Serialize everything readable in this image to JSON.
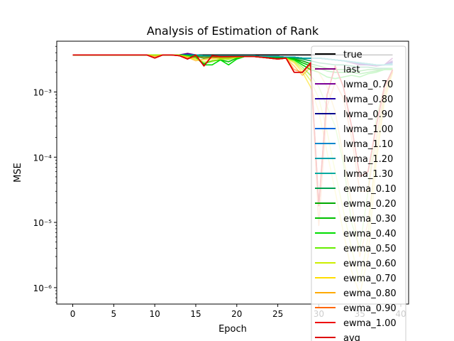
{
  "chart_data": {
    "type": "line",
    "title": "Analysis of Estimation of Rank",
    "xlabel": "Epoch",
    "ylabel": "MSE",
    "yscale": "log",
    "xlim": [
      -1.95,
      40.95
    ],
    "ylim": [
      5.6e-07,
      0.006
    ],
    "xticks": [
      0,
      5,
      10,
      15,
      20,
      25,
      30,
      35,
      40
    ],
    "yticks": [
      {
        "value": 1e-06,
        "label": "10⁻⁶"
      },
      {
        "value": 1e-05,
        "label": "10⁻⁵"
      },
      {
        "value": 0.0001,
        "label": "10⁻⁴"
      },
      {
        "value": 0.001,
        "label": "10⁻³"
      }
    ],
    "grid": false,
    "legend_position": "right, overflowing bottom",
    "x": [
      0,
      1,
      2,
      3,
      4,
      5,
      6,
      7,
      8,
      9,
      10,
      11,
      12,
      13,
      14,
      15,
      16,
      17,
      18,
      19,
      20,
      21,
      22,
      23,
      24,
      25,
      26,
      27,
      28,
      29,
      30,
      31,
      32,
      33,
      34,
      35,
      36,
      37,
      38,
      39
    ],
    "series": [
      {
        "name": "true",
        "color": "#000000",
        "values": [
          0.0037,
          0.0037,
          0.0037,
          0.0037,
          0.0037,
          0.0037,
          0.0037,
          0.0037,
          0.0037,
          0.0037,
          0.0037,
          0.0037,
          0.0037,
          0.0037,
          0.0037,
          0.0037,
          0.0037,
          0.0037,
          0.0037,
          0.0037,
          0.0037,
          0.0037,
          0.0037,
          0.0037,
          0.0037,
          0.0037,
          0.0037,
          0.0037,
          0.0037,
          0.0037,
          0.0037,
          0.0037,
          0.0037,
          0.0037,
          0.0037,
          0.0037,
          0.0037,
          0.0037,
          0.0037,
          0.0037
        ]
      },
      {
        "name": "last",
        "color": "#800080",
        "values": [
          0.0037,
          0.0037,
          0.0037,
          0.0037,
          0.0037,
          0.0037,
          0.0037,
          0.0037,
          0.0037,
          0.0037,
          0.0037,
          0.0037,
          0.0037,
          0.0037,
          0.0039,
          0.0037,
          0.0036,
          0.0036,
          0.0035,
          0.0036,
          0.0036,
          0.0036,
          0.0036,
          0.0035,
          0.0035,
          0.0034,
          0.0034,
          0.0034,
          0.0033,
          0.0033,
          0.0033,
          0.0032,
          0.0031,
          0.003,
          0.0028,
          0.0026,
          0.0026,
          0.0025,
          0.0026,
          0.0033
        ]
      },
      {
        "name": "lwma_0.70",
        "color": "#7b0098",
        "values": [
          0.0037,
          0.0037,
          0.0037,
          0.0037,
          0.0037,
          0.0037,
          0.0037,
          0.0037,
          0.0037,
          0.0037,
          0.0037,
          0.0037,
          0.0037,
          0.0037,
          0.0038,
          0.0037,
          0.0036,
          0.0036,
          0.0036,
          0.0036,
          0.0036,
          0.0036,
          0.0036,
          0.0035,
          0.0035,
          0.0035,
          0.0034,
          0.0034,
          0.0033,
          0.0033,
          0.0033,
          0.0032,
          0.0031,
          0.003,
          0.0029,
          0.0027,
          0.0026,
          0.0026,
          0.0026,
          0.003
        ]
      },
      {
        "name": "lwma_0.80",
        "color": "#1f00aa",
        "values": [
          0.0037,
          0.0037,
          0.0037,
          0.0037,
          0.0037,
          0.0037,
          0.0037,
          0.0037,
          0.0037,
          0.0037,
          0.0037,
          0.0037,
          0.0037,
          0.0037,
          0.0038,
          0.0037,
          0.0036,
          0.0036,
          0.0036,
          0.0036,
          0.0036,
          0.0036,
          0.0036,
          0.0035,
          0.0035,
          0.0035,
          0.0034,
          0.0034,
          0.0033,
          0.0033,
          0.0033,
          0.0032,
          0.0031,
          0.003,
          0.0029,
          0.0027,
          0.0026,
          0.0026,
          0.0026,
          0.0029
        ]
      },
      {
        "name": "lwma_0.90",
        "color": "#00008e",
        "values": [
          0.0037,
          0.0037,
          0.0037,
          0.0037,
          0.0037,
          0.0037,
          0.0037,
          0.0037,
          0.0037,
          0.0037,
          0.0037,
          0.0037,
          0.0037,
          0.0037,
          0.0037,
          0.0037,
          0.0036,
          0.0036,
          0.0036,
          0.0036,
          0.0036,
          0.0036,
          0.0036,
          0.0035,
          0.0035,
          0.0035,
          0.0034,
          0.0034,
          0.0033,
          0.0033,
          0.0033,
          0.0032,
          0.0031,
          0.003,
          0.0029,
          0.0028,
          0.0027,
          0.0026,
          0.0026,
          0.0028
        ]
      },
      {
        "name": "lwma_1.00",
        "color": "#0066dd",
        "values": [
          0.0037,
          0.0037,
          0.0037,
          0.0037,
          0.0037,
          0.0037,
          0.0037,
          0.0037,
          0.0037,
          0.0037,
          0.0037,
          0.0037,
          0.0037,
          0.0037,
          0.0037,
          0.0037,
          0.0036,
          0.0036,
          0.0036,
          0.0036,
          0.0036,
          0.0036,
          0.0036,
          0.0035,
          0.0035,
          0.0035,
          0.0034,
          0.0034,
          0.0033,
          0.0033,
          0.0033,
          0.0032,
          0.0031,
          0.003,
          0.0029,
          0.0028,
          0.0027,
          0.0026,
          0.0026,
          0.0027
        ]
      },
      {
        "name": "lwma_1.10",
        "color": "#0088cc",
        "values": [
          0.0037,
          0.0037,
          0.0037,
          0.0037,
          0.0037,
          0.0037,
          0.0037,
          0.0037,
          0.0037,
          0.0037,
          0.0037,
          0.0037,
          0.0037,
          0.0037,
          0.0037,
          0.0037,
          0.0036,
          0.0036,
          0.0036,
          0.0036,
          0.0036,
          0.0036,
          0.0036,
          0.0035,
          0.0035,
          0.0035,
          0.0034,
          0.0034,
          0.0033,
          0.0033,
          0.0033,
          0.0032,
          0.0031,
          0.003,
          0.0029,
          0.0028,
          0.0027,
          0.0026,
          0.0026,
          0.0027
        ]
      },
      {
        "name": "lwma_1.20",
        "color": "#00a0aa",
        "values": [
          0.0037,
          0.0037,
          0.0037,
          0.0037,
          0.0037,
          0.0037,
          0.0037,
          0.0037,
          0.0037,
          0.0037,
          0.0037,
          0.0037,
          0.0037,
          0.0037,
          0.0037,
          0.0037,
          0.0036,
          0.0036,
          0.0036,
          0.0036,
          0.0036,
          0.0036,
          0.0036,
          0.0035,
          0.0035,
          0.0035,
          0.0034,
          0.0034,
          0.0033,
          0.0033,
          0.0033,
          0.0032,
          0.0031,
          0.003,
          0.0029,
          0.0028,
          0.0027,
          0.0026,
          0.0026,
          0.0026
        ]
      },
      {
        "name": "lwma_1.30",
        "color": "#00aaa0",
        "values": [
          0.0037,
          0.0037,
          0.0037,
          0.0037,
          0.0037,
          0.0037,
          0.0037,
          0.0037,
          0.0037,
          0.0037,
          0.0037,
          0.0037,
          0.0037,
          0.0037,
          0.0037,
          0.0037,
          0.0036,
          0.0036,
          0.0036,
          0.0036,
          0.0036,
          0.0036,
          0.0036,
          0.0035,
          0.0035,
          0.0035,
          0.0034,
          0.0034,
          0.0033,
          0.0033,
          0.0033,
          0.0032,
          0.0031,
          0.003,
          0.0029,
          0.0028,
          0.0027,
          0.0026,
          0.0026,
          0.0026
        ]
      },
      {
        "name": "ewma_0.10",
        "color": "#00a050",
        "values": [
          0.0037,
          0.0037,
          0.0037,
          0.0037,
          0.0037,
          0.0037,
          0.0037,
          0.0037,
          0.0037,
          0.0037,
          0.0037,
          0.0037,
          0.0037,
          0.0037,
          0.0036,
          0.0036,
          0.0035,
          0.0035,
          0.0034,
          0.0034,
          0.0035,
          0.0035,
          0.0035,
          0.0034,
          0.0034,
          0.0034,
          0.0033,
          0.0033,
          0.0032,
          0.003,
          0.0028,
          0.0027,
          0.0026,
          0.0026,
          0.0025,
          0.0024,
          0.0024,
          0.0023,
          0.0023,
          0.0023
        ]
      },
      {
        "name": "ewma_0.20",
        "color": "#00aa00",
        "values": [
          0.0037,
          0.0037,
          0.0037,
          0.0037,
          0.0037,
          0.0037,
          0.0037,
          0.0037,
          0.0037,
          0.0037,
          0.0037,
          0.0037,
          0.0037,
          0.0037,
          0.0036,
          0.0035,
          0.0033,
          0.0034,
          0.0033,
          0.0033,
          0.0034,
          0.0035,
          0.0035,
          0.0034,
          0.0033,
          0.0033,
          0.0033,
          0.0032,
          0.003,
          0.0027,
          0.0025,
          0.0023,
          0.0022,
          0.0022,
          0.0022,
          0.0021,
          0.0022,
          0.0022,
          0.0022,
          0.0023
        ]
      },
      {
        "name": "ewma_0.30",
        "color": "#00c000",
        "values": [
          0.0037,
          0.0037,
          0.0037,
          0.0037,
          0.0037,
          0.0037,
          0.0037,
          0.0037,
          0.0037,
          0.0037,
          0.0037,
          0.0037,
          0.0037,
          0.0037,
          0.0036,
          0.0034,
          0.0027,
          0.003,
          0.0031,
          0.0029,
          0.0033,
          0.0035,
          0.0035,
          0.0034,
          0.0033,
          0.0032,
          0.0033,
          0.0032,
          0.0028,
          0.0025,
          0.0023,
          0.0021,
          0.002,
          0.002,
          0.002,
          0.0019,
          0.002,
          0.0021,
          0.0022,
          0.0022
        ]
      },
      {
        "name": "ewma_0.40",
        "color": "#00dd00",
        "values": [
          0.0037,
          0.0037,
          0.0037,
          0.0037,
          0.0037,
          0.0037,
          0.0037,
          0.0037,
          0.0037,
          0.0037,
          0.0037,
          0.0037,
          0.0037,
          0.0037,
          0.0036,
          0.0034,
          0.0026,
          0.0026,
          0.0031,
          0.0026,
          0.0032,
          0.0035,
          0.0035,
          0.0034,
          0.0033,
          0.0032,
          0.0033,
          0.0031,
          0.0026,
          0.0022,
          0.002,
          0.0017,
          0.0016,
          0.0017,
          0.0018,
          0.0017,
          0.0019,
          0.002,
          0.0022,
          0.0023
        ]
      },
      {
        "name": "ewma_0.50",
        "color": "#66ee00",
        "values": [
          0.0037,
          0.0037,
          0.0037,
          0.0037,
          0.0037,
          0.0037,
          0.0037,
          0.0037,
          0.0037,
          0.0037,
          0.0037,
          0.0037,
          0.0037,
          0.0037,
          0.0035,
          0.0033,
          0.0028,
          0.0029,
          0.0032,
          0.0031,
          0.0034,
          0.0035,
          0.0035,
          0.0034,
          0.0033,
          0.0032,
          0.0033,
          0.003,
          0.0024,
          0.0018,
          0.0012,
          0.0006,
          0.0003,
          8e-05,
          1e-05,
          4e-06,
          3e-05,
          0.0004,
          0.0012,
          0.002
        ]
      },
      {
        "name": "ewma_0.60",
        "color": "#ccee00",
        "values": [
          0.0037,
          0.0037,
          0.0037,
          0.0037,
          0.0037,
          0.0037,
          0.0037,
          0.0037,
          0.0037,
          0.0037,
          0.0037,
          0.0037,
          0.0037,
          0.0037,
          0.0035,
          0.0032,
          0.0029,
          0.003,
          0.0032,
          0.0032,
          0.0034,
          0.0035,
          0.0035,
          0.0034,
          0.0033,
          0.0032,
          0.0033,
          0.0029,
          0.0022,
          0.0015,
          0.0008,
          0.00025,
          6e-05,
          1.5e-05,
          4e-06,
          1.2e-06,
          6e-06,
          0.00015,
          0.0009,
          0.002
        ]
      },
      {
        "name": "ewma_0.70",
        "color": "#ffdd00",
        "values": [
          0.0037,
          0.0037,
          0.0037,
          0.0037,
          0.0037,
          0.0037,
          0.0037,
          0.0037,
          0.0037,
          0.0037,
          0.0036,
          0.0037,
          0.0037,
          0.0036,
          0.0034,
          0.0031,
          0.0031,
          0.0032,
          0.0033,
          0.0033,
          0.0034,
          0.0035,
          0.0035,
          0.0034,
          0.0033,
          0.0032,
          0.0033,
          0.0028,
          0.002,
          0.0012,
          0.0005,
          0.00012,
          3e-05,
          7e-06,
          1.8e-06,
          8e-07,
          3e-06,
          8e-05,
          0.0007,
          0.002
        ]
      },
      {
        "name": "ewma_0.80",
        "color": "#ffaa00",
        "values": [
          0.0037,
          0.0037,
          0.0037,
          0.0037,
          0.0037,
          0.0037,
          0.0037,
          0.0037,
          0.0037,
          0.0037,
          0.0035,
          0.0037,
          0.0037,
          0.0036,
          0.0034,
          0.003,
          0.0032,
          0.0033,
          0.0034,
          0.0034,
          0.0035,
          0.0035,
          0.0035,
          0.0034,
          0.0033,
          0.0032,
          0.0033,
          0.0025,
          0.0018,
          0.0024,
          0.002,
          0.0012,
          0.0005,
          0.0001,
          2e-05,
          3e-06,
          1e-05,
          0.0001,
          0.0008,
          0.0021
        ]
      },
      {
        "name": "ewma_0.90",
        "color": "#ff6600",
        "values": [
          0.0037,
          0.0037,
          0.0037,
          0.0037,
          0.0037,
          0.0037,
          0.0037,
          0.0037,
          0.0037,
          0.0037,
          0.0034,
          0.0037,
          0.0037,
          0.0036,
          0.0033,
          0.0034,
          0.0034,
          0.0034,
          0.0034,
          0.0035,
          0.0035,
          0.0035,
          0.0035,
          0.0034,
          0.0033,
          0.0032,
          0.0033,
          0.0022,
          0.002,
          0.0026,
          9e-06,
          0.0006,
          0.0014,
          0.0008,
          0.0002,
          3e-05,
          3e-05,
          0.0002,
          0.001,
          0.0021
        ]
      },
      {
        "name": "ewma_1.00",
        "color": "#ee0000",
        "values": [
          0.0037,
          0.0037,
          0.0037,
          0.0037,
          0.0037,
          0.0037,
          0.0037,
          0.0037,
          0.0037,
          0.0037,
          0.0033,
          0.0037,
          0.0037,
          0.0036,
          0.0032,
          0.0037,
          0.0025,
          0.0036,
          0.0035,
          0.0035,
          0.0035,
          0.0035,
          0.0035,
          0.0034,
          0.0033,
          0.0032,
          0.0033,
          0.002,
          0.002,
          0.0028,
          1.8e-05,
          0.0009,
          0.0025,
          0.0012,
          0.0003,
          5e-05,
          6e-05,
          0.0003,
          0.0012,
          0.0022
        ]
      },
      {
        "name": "avg",
        "color": "#dd0000",
        "values": [
          0.0037,
          0.0037,
          0.0037,
          0.0037,
          0.0037,
          0.0037,
          0.0037,
          0.0037,
          0.0037,
          0.0037,
          0.0033,
          0.0037,
          0.0037,
          0.0036,
          0.0032,
          0.0037,
          0.0025,
          0.0036,
          0.0035,
          0.0035,
          0.0035,
          0.0035,
          0.0035,
          0.0034,
          0.0033,
          0.0032,
          0.0033,
          0.002,
          0.002,
          0.0028,
          1.8e-05,
          0.0009,
          0.0025,
          0.0012,
          0.0003,
          5e-05,
          6e-05,
          0.0003,
          0.0012,
          0.0022
        ]
      }
    ]
  }
}
